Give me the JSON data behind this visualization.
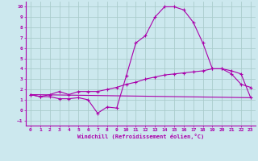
{
  "xlabel": "Windchill (Refroidissement éolien,°C)",
  "xlim": [
    -0.5,
    23.5
  ],
  "ylim": [
    -1.5,
    10.5
  ],
  "xticks": [
    0,
    1,
    2,
    3,
    4,
    5,
    6,
    7,
    8,
    9,
    10,
    11,
    12,
    13,
    14,
    15,
    16,
    17,
    18,
    19,
    20,
    21,
    22,
    23
  ],
  "yticks": [
    -1,
    0,
    1,
    2,
    3,
    4,
    5,
    6,
    7,
    8,
    9,
    10
  ],
  "bg_color": "#cce8ee",
  "grid_color": "#aacccc",
  "line_color": "#aa00aa",
  "line1_x": [
    0,
    1,
    2,
    3,
    4,
    5,
    6,
    7,
    8,
    9,
    10,
    11,
    12,
    13,
    14,
    15,
    16,
    17,
    18,
    19,
    20,
    21,
    22,
    23
  ],
  "line1_y": [
    1.5,
    1.3,
    1.3,
    1.1,
    1.1,
    1.2,
    1.0,
    -0.3,
    0.3,
    0.2,
    3.3,
    6.5,
    7.2,
    9.0,
    10.0,
    10.0,
    9.7,
    8.5,
    6.5,
    4.0,
    4.0,
    3.5,
    2.5,
    2.2
  ],
  "line2_x": [
    0,
    23
  ],
  "line2_y": [
    1.5,
    1.2
  ],
  "line3_x": [
    0,
    1,
    2,
    3,
    4,
    5,
    6,
    7,
    8,
    9,
    10,
    11,
    12,
    13,
    14,
    15,
    16,
    17,
    18,
    19,
    20,
    21,
    22,
    23
  ],
  "line3_y": [
    1.5,
    1.3,
    1.5,
    1.8,
    1.5,
    1.8,
    1.8,
    1.8,
    2.0,
    2.2,
    2.5,
    2.7,
    3.0,
    3.2,
    3.4,
    3.5,
    3.6,
    3.7,
    3.8,
    4.0,
    4.0,
    3.8,
    3.5,
    1.2
  ]
}
